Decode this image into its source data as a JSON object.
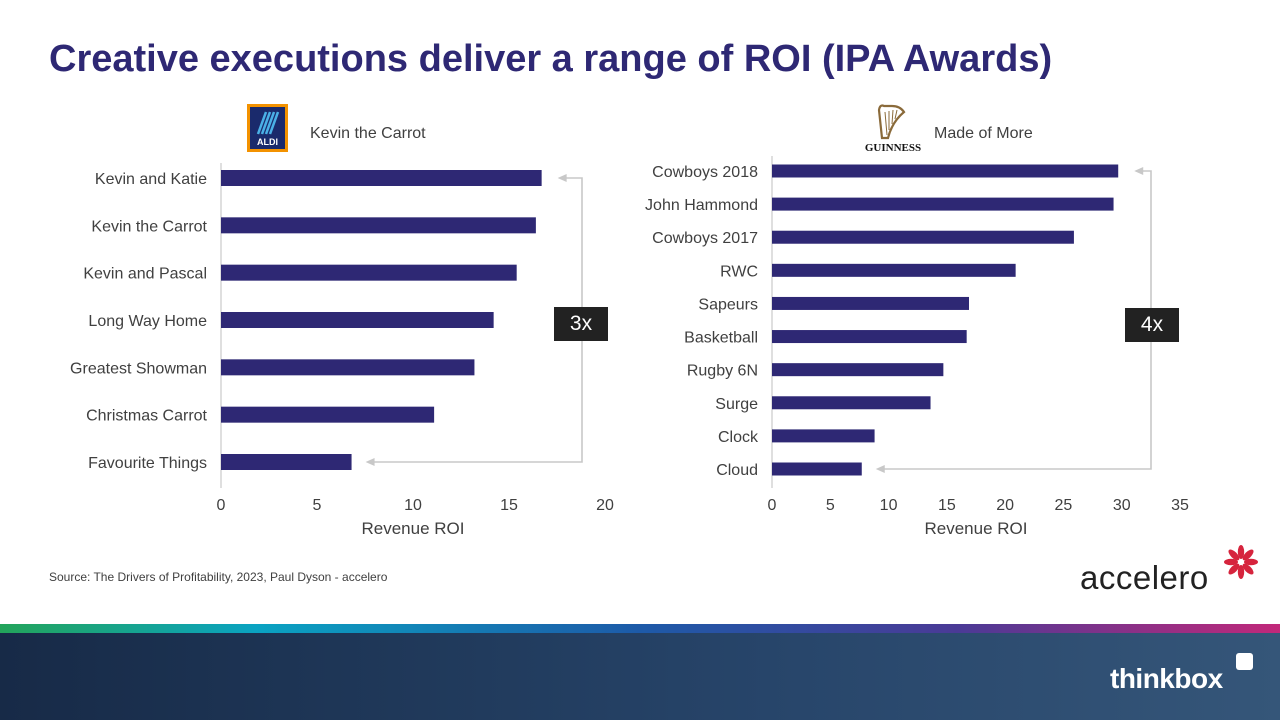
{
  "slide": {
    "title": "Creative executions deliver a range of ROI (IPA Awards)",
    "source": "Source: The Drivers of Profitability, 2023, Paul Dyson - accelero",
    "accelero_label": "accelero",
    "thinkbox_label": "thinkbox",
    "accent_color": "#2e2874",
    "bar_color": "#2e2874"
  },
  "logos": {
    "aldi": {
      "text": "ALDI",
      "icon": "aldi-logo"
    },
    "guinness": {
      "text": "GUINNESS",
      "icon": "guinness-harp-logo"
    }
  },
  "chart_data": [
    {
      "type": "bar",
      "orientation": "horizontal",
      "brand": "Kevin the Carrot",
      "categories": [
        "Kevin and Katie",
        "Kevin the Carrot",
        "Kevin and Pascal",
        "Long Way Home",
        "Greatest Showman",
        "Christmas Carrot",
        "Favourite Things"
      ],
      "values": [
        16.7,
        16.4,
        15.4,
        14.2,
        13.2,
        11.1,
        6.8
      ],
      "xlabel": "Revenue ROI",
      "xlim": [
        0,
        20
      ],
      "xticks": [
        0,
        5,
        10,
        15,
        20
      ],
      "annotation": "3x",
      "grid": false
    },
    {
      "type": "bar",
      "orientation": "horizontal",
      "brand": "Made of More",
      "categories": [
        "Cowboys 2018",
        "John Hammond",
        "Cowboys 2017",
        "RWC",
        "Sapeurs",
        "Basketball",
        "Rugby 6N",
        "Surge",
        "Clock",
        "Cloud"
      ],
      "values": [
        29.7,
        29.3,
        25.9,
        20.9,
        16.9,
        16.7,
        14.7,
        13.6,
        8.8,
        7.7
      ],
      "xlabel": "Revenue ROI",
      "xlim": [
        0,
        35
      ],
      "xticks": [
        0,
        5,
        10,
        15,
        20,
        25,
        30,
        35
      ],
      "annotation": "4x",
      "grid": false
    }
  ]
}
